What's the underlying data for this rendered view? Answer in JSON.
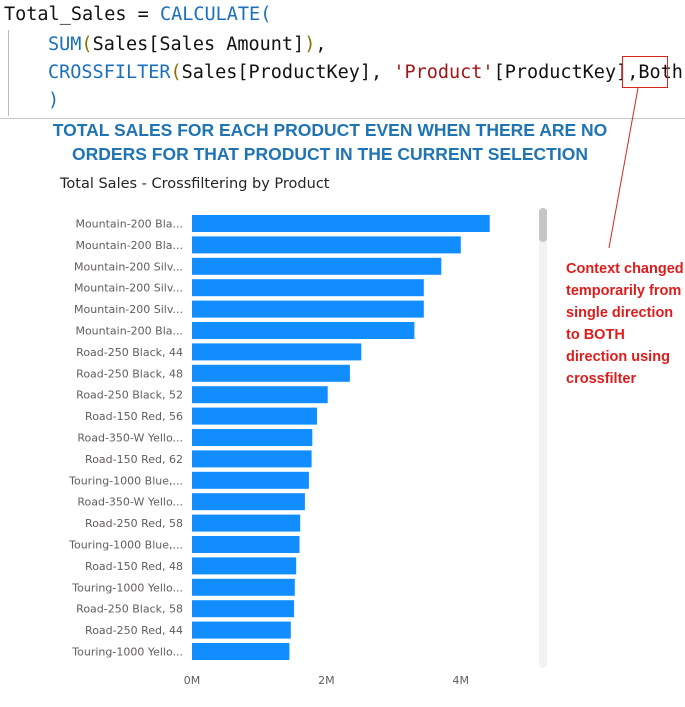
{
  "code": {
    "line1": {
      "measure": "Total_Sales",
      "op": " = ",
      "fn": "CALCULATE",
      "paren": "("
    },
    "line2": {
      "fn": "SUM",
      "open": "(",
      "table": "Sales",
      "col": "[Sales Amount]",
      "close": ")",
      "close2": ")",
      "comma": ","
    },
    "line3": {
      "fn": "CROSSFILTER",
      "open": "(",
      "table1": "Sales",
      "col1": "[ProductKey]",
      "sep": ", ",
      "table2": "'Product'",
      "col2": "[ProductKey]",
      "comma": ",",
      "direction": "Both",
      "close": ")"
    },
    "line4": {
      "close": ")"
    }
  },
  "annotation": {
    "headline": "TOTAL SALES FOR EACH PRODUCT EVEN WHEN THERE ARE NO ORDERS FOR THAT PRODUCT IN THE CURRENT SELECTION",
    "note": "Context changed temporarily from single direction to BOTH direction using crossfilter",
    "note_color": "#e01b1b",
    "headline_color": "#1f74b4"
  },
  "chart_data": {
    "type": "bar",
    "orientation": "horizontal",
    "title": "Total Sales - Crossfiltering by Product",
    "bar_color": "#118dff",
    "categories": [
      "Mountain-200 Bla...",
      "Mountain-200 Bla...",
      "Mountain-200 Silv...",
      "Mountain-200 Silv...",
      "Mountain-200 Silv...",
      "Mountain-200 Bla...",
      "Road-250 Black, 44",
      "Road-250 Black, 48",
      "Road-250 Black, 52",
      "Road-150 Red, 56",
      "Road-350-W Yello...",
      "Road-150 Red, 62",
      "Touring-1000 Blue,...",
      "Road-350-W Yello...",
      "Road-250 Red, 58",
      "Touring-1000 Blue,...",
      "Road-150 Red, 48",
      "Touring-1000 Yello...",
      "Road-250 Black, 58",
      "Road-250 Red, 44",
      "Touring-1000 Yello..."
    ],
    "values": [
      4.43,
      4.0,
      3.71,
      3.45,
      3.45,
      3.31,
      2.52,
      2.35,
      2.02,
      1.86,
      1.79,
      1.78,
      1.74,
      1.68,
      1.61,
      1.6,
      1.55,
      1.53,
      1.52,
      1.47,
      1.45
    ],
    "value_unit": "M",
    "xlim": [
      0,
      5.2
    ],
    "x_ticks": [
      {
        "value": 0,
        "label": "0M"
      },
      {
        "value": 2,
        "label": "2M"
      },
      {
        "value": 4,
        "label": "4M"
      }
    ],
    "grid": false,
    "legend": "none"
  }
}
